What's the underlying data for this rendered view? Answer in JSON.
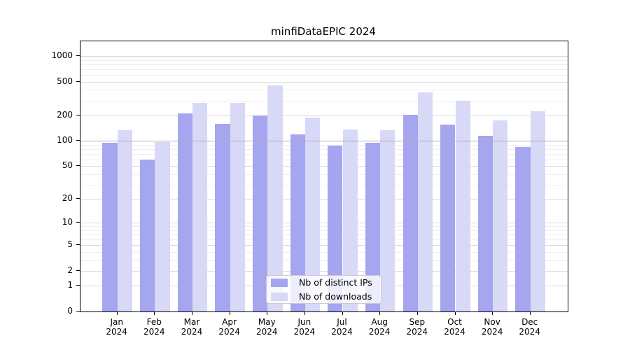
{
  "title": "minfiDataEPIC 2024",
  "chart_data": {
    "type": "bar",
    "title": "minfiDataEPIC 2024",
    "scale": "log1p (symlog-style, linear at 0)",
    "grid": true,
    "legend_position": "lower center",
    "categories": [
      "Jan",
      "Feb",
      "Mar",
      "Apr",
      "May",
      "Jun",
      "Jul",
      "Aug",
      "Sep",
      "Oct",
      "Nov",
      "Dec"
    ],
    "category_year": "2024",
    "series": [
      {
        "name": "Nb of distinct IPs",
        "color": "#a5a5f0",
        "values": [
          95,
          60,
          210,
          160,
          198,
          120,
          88,
          95,
          205,
          155,
          115,
          84
        ]
      },
      {
        "name": "Nb of downloads",
        "color": "#d8d8f7",
        "values": [
          135,
          97,
          283,
          280,
          450,
          190,
          137,
          133,
          370,
          300,
          176,
          222
        ]
      }
    ],
    "yticks": [
      0,
      1,
      2,
      5,
      10,
      20,
      50,
      100,
      200,
      500,
      1000
    ],
    "minor_gridlines": [
      3,
      4,
      6,
      7,
      8,
      9,
      30,
      40,
      60,
      70,
      80,
      90,
      300,
      400,
      600,
      700,
      800,
      900
    ],
    "emphasis_gridline": 100,
    "ylim_top": 1480,
    "colors": {
      "major_grid": "#d9d9d9",
      "minor_grid": "#efefef",
      "emphasis_grid": "#b0b0b0",
      "axis": "#000000"
    }
  },
  "legend": {
    "items": [
      "Nb of distinct IPs",
      "Nb of downloads"
    ]
  }
}
